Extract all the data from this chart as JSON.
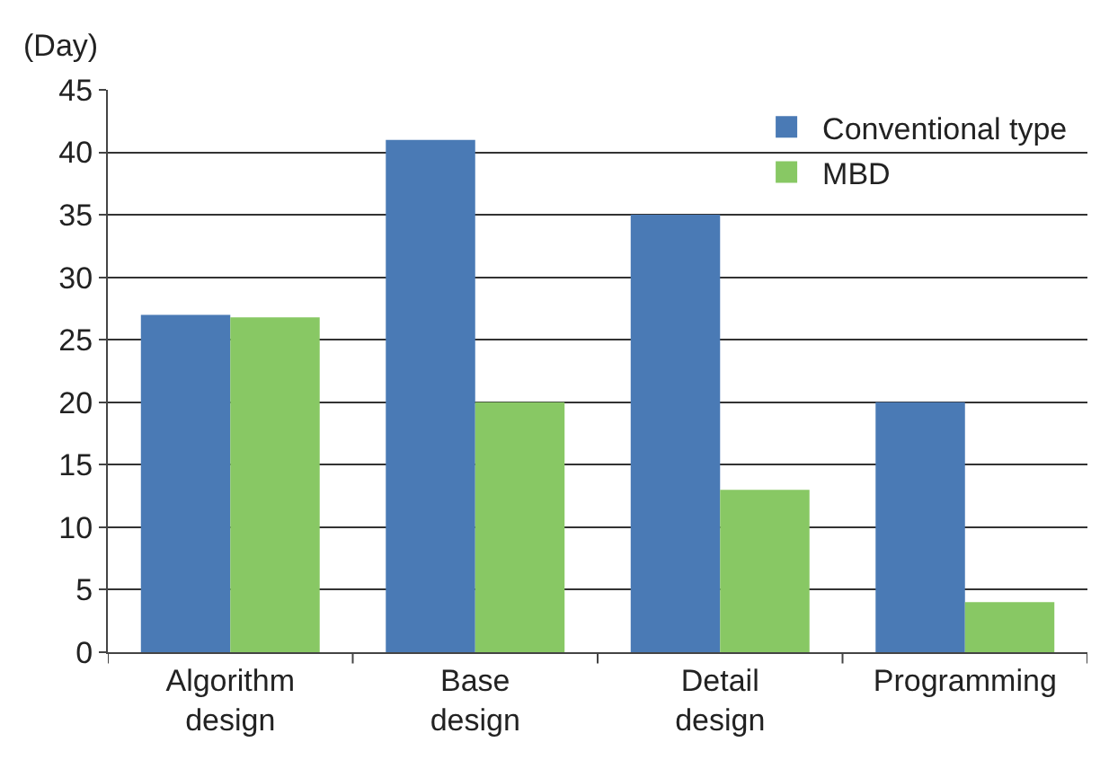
{
  "chart_data": {
    "type": "bar",
    "ylabel": "(Day)",
    "categories": [
      "Algorithm\ndesign",
      "Base\ndesign",
      "Detail\ndesign",
      "Programming"
    ],
    "series": [
      {
        "name": "Conventional type",
        "color": "#4a7ab5",
        "values": [
          27,
          41,
          35,
          20
        ]
      },
      {
        "name": "MBD",
        "color": "#88c864",
        "values": [
          26.8,
          20,
          13,
          4
        ]
      }
    ],
    "ylim": [
      0,
      45
    ],
    "yticks": [
      0,
      5,
      10,
      15,
      20,
      25,
      30,
      35,
      40,
      45
    ],
    "grid": "y",
    "legend": "top right"
  }
}
